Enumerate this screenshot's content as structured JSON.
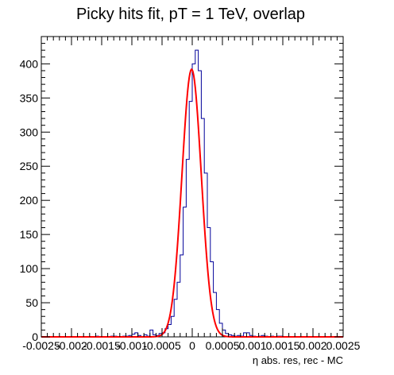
{
  "chart_data": {
    "type": "histogram",
    "title": "Picky hits fit, pT = 1 TeV, overlap",
    "xlabel": "η abs. res, rec - MC",
    "ylabel": "",
    "xlim": [
      -0.0025,
      0.0025
    ],
    "ylim": [
      0,
      440
    ],
    "xticks": [
      -0.0025,
      -0.002,
      -0.0015,
      -0.001,
      -0.0005,
      0,
      0.0005,
      0.001,
      0.0015,
      0.002,
      0.0025
    ],
    "xtick_labels": [
      "-0.0025",
      "-0.002",
      "-0.0015",
      "-0.001",
      "-0.0005",
      "0",
      "0.0005",
      "0.001",
      "0.0015",
      "0.002",
      "0.0025"
    ],
    "yticks": [
      0,
      50,
      100,
      150,
      200,
      250,
      300,
      350,
      400
    ],
    "ytick_labels": [
      "0",
      "50",
      "100",
      "150",
      "200",
      "250",
      "300",
      "350",
      "400"
    ],
    "bins": {
      "min": -0.0025,
      "max": 0.0025,
      "count": 100
    },
    "series": [
      {
        "kind": "histogram",
        "color": "#000099",
        "counts": [
          0,
          0,
          0,
          0,
          0,
          0,
          0,
          0,
          0,
          0,
          0,
          0,
          0,
          0,
          0,
          0,
          0,
          0,
          1,
          0,
          0,
          0,
          0,
          1,
          1,
          0,
          0,
          1,
          1,
          2,
          4,
          6,
          2,
          0,
          3,
          1,
          10,
          3,
          2,
          5,
          6,
          12,
          18,
          30,
          55,
          80,
          120,
          190,
          260,
          345,
          400,
          420,
          390,
          320,
          240,
          160,
          110,
          65,
          40,
          20,
          10,
          5,
          3,
          2,
          1,
          2,
          1,
          6,
          6,
          2,
          1,
          0,
          1,
          2,
          1,
          0,
          1,
          0,
          1,
          1,
          0,
          0,
          0,
          0,
          0,
          0,
          0,
          0,
          0,
          0,
          0,
          0,
          0,
          0,
          0,
          0,
          0,
          0,
          0,
          0
        ]
      },
      {
        "kind": "gaussian-fit",
        "color": "#ff0000",
        "amplitude": 392,
        "mean": -1e-05,
        "sigma": 0.00016
      }
    ],
    "grid": false,
    "legend": "none"
  }
}
